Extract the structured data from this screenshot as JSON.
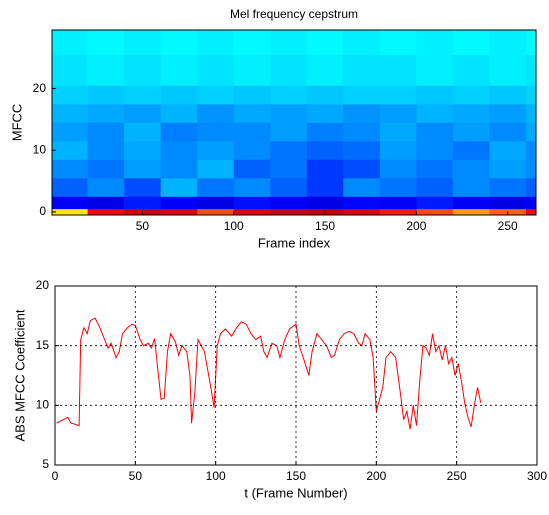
{
  "chart_data": [
    {
      "type": "heatmap",
      "title": "Mel frequency cepstrum",
      "x_label": "Frame index",
      "y_label": "MFCC",
      "colormap": "jet",
      "clim": [
        0,
        1
      ],
      "x_edges": [
        0.5,
        20,
        40,
        60,
        80,
        100,
        120,
        140,
        160,
        180,
        200,
        220,
        240,
        260,
        265.5
      ],
      "y_edges": [
        -0.5,
        0.5,
        2.5,
        5.5,
        8.5,
        11.5,
        14.5,
        17.5,
        20.5,
        25.5,
        29.5
      ],
      "values": [
        [
          0.65,
          0.88,
          0.92,
          0.9,
          0.8,
          0.9,
          0.92,
          0.93,
          0.9,
          0.85,
          0.8,
          0.72,
          0.78,
          0.88
        ],
        [
          0.12,
          0.1,
          0.15,
          0.12,
          0.1,
          0.14,
          0.12,
          0.1,
          0.13,
          0.12,
          0.15,
          0.12,
          0.1,
          0.12
        ],
        [
          0.22,
          0.26,
          0.2,
          0.3,
          0.24,
          0.26,
          0.22,
          0.18,
          0.26,
          0.24,
          0.22,
          0.26,
          0.24,
          0.22
        ],
        [
          0.26,
          0.24,
          0.28,
          0.26,
          0.3,
          0.22,
          0.24,
          0.18,
          0.2,
          0.26,
          0.24,
          0.26,
          0.28,
          0.26
        ],
        [
          0.3,
          0.26,
          0.29,
          0.26,
          0.28,
          0.26,
          0.24,
          0.22,
          0.23,
          0.28,
          0.26,
          0.24,
          0.29,
          0.26
        ],
        [
          0.28,
          0.26,
          0.3,
          0.25,
          0.26,
          0.26,
          0.28,
          0.25,
          0.26,
          0.29,
          0.26,
          0.28,
          0.26,
          0.29
        ],
        [
          0.3,
          0.29,
          0.28,
          0.3,
          0.27,
          0.29,
          0.28,
          0.29,
          0.27,
          0.28,
          0.3,
          0.29,
          0.28,
          0.3
        ],
        [
          0.33,
          0.32,
          0.33,
          0.32,
          0.33,
          0.32,
          0.33,
          0.32,
          0.33,
          0.33,
          0.32,
          0.33,
          0.32,
          0.33
        ],
        [
          0.35,
          0.36,
          0.35,
          0.36,
          0.35,
          0.36,
          0.35,
          0.36,
          0.35,
          0.35,
          0.36,
          0.35,
          0.36,
          0.35
        ],
        [
          0.36,
          0.37,
          0.36,
          0.37,
          0.36,
          0.37,
          0.36,
          0.37,
          0.36,
          0.37,
          0.36,
          0.37,
          0.36,
          0.37
        ]
      ],
      "xlim": [
        0.5,
        265.5
      ],
      "xticks": [
        50,
        100,
        150,
        200,
        250
      ],
      "ylim": [
        -0.5,
        29.5
      ],
      "yticks": [
        0,
        10,
        20
      ]
    },
    {
      "type": "line",
      "x_label": "t (Frame Number)",
      "y_label": "ABS MFCC Coefficient",
      "x": [
        1,
        5,
        8,
        10,
        13,
        15,
        16,
        18,
        20,
        22,
        25,
        28,
        30,
        33,
        35,
        38,
        40,
        42,
        45,
        48,
        50,
        53,
        55,
        58,
        60,
        62,
        64,
        66,
        68,
        70,
        72,
        75,
        77,
        79,
        82,
        84,
        85,
        87,
        89,
        91,
        93,
        95,
        97,
        99,
        101,
        103,
        106,
        110,
        113,
        116,
        119,
        122,
        125,
        128,
        130,
        132,
        135,
        138,
        140,
        143,
        146,
        150,
        152,
        155,
        158,
        160,
        163,
        166,
        169,
        172,
        174,
        177,
        180,
        183,
        186,
        189,
        191,
        193,
        196,
        198,
        200,
        202,
        204,
        206,
        209,
        212,
        215,
        217,
        219,
        221,
        223,
        225,
        227,
        229,
        231,
        233,
        235,
        237,
        239,
        241,
        243,
        245,
        247,
        249,
        251,
        253,
        255,
        257,
        259,
        261,
        263,
        265
      ],
      "series": [
        {
          "color": "#ff0000",
          "values": [
            8.5,
            8.8,
            9.0,
            8.5,
            8.4,
            8.3,
            15.5,
            16.5,
            16.0,
            17.1,
            17.3,
            16.5,
            15.8,
            14.8,
            15.2,
            14.0,
            14.5,
            16.0,
            16.5,
            16.8,
            16.7,
            15.5,
            15.0,
            15.2,
            14.8,
            15.6,
            13.0,
            10.5,
            10.6,
            14.5,
            16.0,
            15.3,
            14.2,
            15.0,
            14.5,
            12.5,
            8.5,
            11.0,
            15.5,
            15.0,
            14.5,
            13.0,
            11.5,
            9.8,
            15.0,
            16.0,
            16.4,
            15.8,
            16.5,
            17.0,
            16.8,
            16.0,
            15.5,
            15.8,
            14.5,
            14.0,
            15.2,
            15.0,
            14.0,
            15.5,
            16.4,
            16.8,
            15.0,
            13.8,
            12.5,
            14.5,
            16.0,
            15.5,
            15.0,
            14.0,
            14.2,
            15.5,
            16.0,
            16.2,
            16.0,
            15.2,
            15.0,
            16.0,
            15.5,
            14.0,
            9.5,
            10.5,
            11.5,
            14.0,
            14.5,
            14.0,
            11.0,
            8.8,
            9.5,
            8.0,
            10.0,
            8.3,
            12.0,
            15.0,
            14.8,
            14.2,
            16.0,
            14.5,
            15.0,
            13.8,
            15.0,
            13.5,
            14.0,
            12.5,
            13.5,
            12.0,
            10.2,
            9.0,
            8.2,
            10.0,
            11.5,
            10.2
          ]
        }
      ],
      "xlim": [
        0,
        300
      ],
      "xticks": [
        0,
        50,
        100,
        150,
        200,
        250,
        300
      ],
      "ylim": [
        5,
        20
      ],
      "yticks": [
        5,
        10,
        15,
        20
      ],
      "grid": true
    }
  ]
}
